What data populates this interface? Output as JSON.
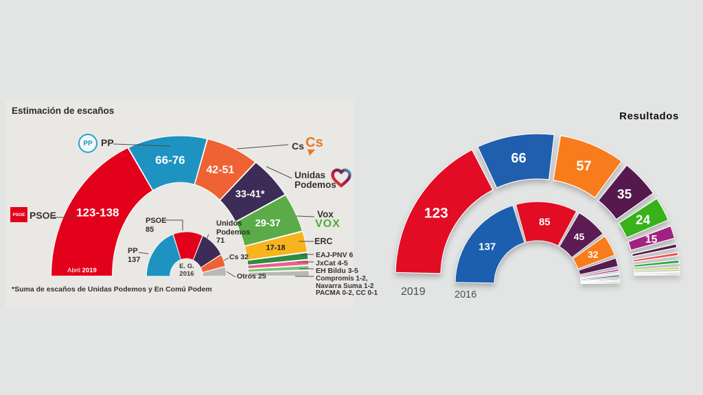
{
  "page": {
    "background": "#e3e4e4"
  },
  "left_chart": {
    "title": "Estimación de escaños",
    "footnote": "*Suma de escaños de Unidas Podemos y En Comú Podem",
    "period_label": {
      "regular": "Abril",
      "bold": "2019"
    },
    "center_label": {
      "line1": "E. G.",
      "line2": "2016"
    },
    "logos": {
      "psoe_logo_text": "PSOE",
      "pp_logo_text": "PP",
      "cs_logo_text": "Cs",
      "vox_logo_text": "VOX"
    },
    "callouts": {
      "pp": "PP",
      "psoe": "PSOE",
      "cs": "Cs",
      "unidas_podemos_line1": "Unidas",
      "unidas_podemos_line2": "Podemos",
      "vox": "Vox",
      "erc": "ERC"
    },
    "small_parties": [
      {
        "name": "EAJ-PNV",
        "value": "6"
      },
      {
        "name": "JxCat",
        "value": "4-5"
      },
      {
        "name": "EH Bildu",
        "value": "3-5"
      }
    ],
    "others_lines": [
      "Compromís 1-2,",
      "Navarra Suma 1-2",
      "PACMA 0-2, CC 0-1"
    ],
    "inner_callouts": {
      "psoe_name": "PSOE",
      "psoe_value": "85",
      "pp_name": "PP",
      "pp_value": "137",
      "up_line1": "Unidos",
      "up_line2": "Podemos",
      "up_value": "71",
      "cs_name": "Cs",
      "cs_value": "32",
      "otros_name": "Otros",
      "otros_value": "25"
    }
  },
  "right_chart": {
    "title": "Resultados",
    "year_outer": "2019",
    "year_inner": "2016"
  },
  "chart_data": [
    {
      "type": "hemicycle",
      "title": "Estimación de escaños",
      "rings": [
        {
          "name": "Abril 2019 estimación",
          "segments": [
            {
              "party": "PSOE",
              "label": "123-138",
              "value": 130.5,
              "color": "#e2001a",
              "text": "#ffffff",
              "fs": 17
            },
            {
              "party": "PP",
              "label": "66-76",
              "value": 71,
              "color": "#1e93c1",
              "text": "#ffffff",
              "fs": 17
            },
            {
              "party": "Cs",
              "label": "42-51",
              "value": 46.5,
              "color": "#ee6233",
              "text": "#ffffff",
              "fs": 16
            },
            {
              "party": "Unidas Podemos",
              "label": "33-41*",
              "value": 37,
              "color": "#3d2c57",
              "text": "#ffffff",
              "fs": 14.5
            },
            {
              "party": "Vox",
              "label": "29-37",
              "value": 33,
              "color": "#5bab48",
              "text": "#ffffff",
              "fs": 14.5
            },
            {
              "party": "ERC",
              "label": "17-18",
              "value": 17.5,
              "color": "#f7b41f",
              "text": "#1d1d1b",
              "fs": 11
            },
            {
              "party": "EAJ-PNV",
              "label": "",
              "value": 6,
              "color": "#2d8b44"
            },
            {
              "party": "JxCat",
              "label": "",
              "value": 4.5,
              "color": "#ec5f8e"
            },
            {
              "party": "EH Bildu",
              "label": "",
              "value": 4,
              "color": "#7cc476"
            },
            {
              "party": "Otros",
              "label": "",
              "value": 5,
              "color": "#b9b9b9"
            }
          ]
        },
        {
          "name": "E.G. 2016",
          "segments": [
            {
              "party": "PP",
              "label": "",
              "value": 137,
              "color": "#1e93c1"
            },
            {
              "party": "PSOE",
              "label": "",
              "value": 85,
              "color": "#e2001a"
            },
            {
              "party": "Unidos Podemos",
              "label": "",
              "value": 71,
              "color": "#3d2c57"
            },
            {
              "party": "Cs",
              "label": "",
              "value": 32,
              "color": "#ee6233"
            },
            {
              "party": "Otros",
              "label": "",
              "value": 25,
              "color": "#b9b9b9"
            }
          ]
        }
      ]
    },
    {
      "type": "hemicycle",
      "title": "Resultados",
      "rings": [
        {
          "name": "2019",
          "segments": [
            {
              "party": "PSOE",
              "label": "123",
              "value": 123,
              "color": "#e20d25",
              "text": "#ffffff",
              "fs": 21
            },
            {
              "party": "PP",
              "label": "66",
              "value": 66,
              "color": "#1f5fae",
              "text": "#ffffff",
              "fs": 20
            },
            {
              "party": "Cs",
              "label": "57",
              "value": 57,
              "color": "#f87c1b",
              "text": "#ffffff",
              "fs": 20
            },
            {
              "party": "Unidas Podemos",
              "label": "35",
              "value": 35,
              "color": "#55194e",
              "text": "#ffffff",
              "fs": 19
            },
            {
              "party": "Vox",
              "label": "24",
              "value": 24,
              "color": "#37b219",
              "text": "#ffffff",
              "fs": 19
            },
            {
              "party": "ERC",
              "label": "15",
              "value": 15,
              "color": "#a32180",
              "text": "#ffffff",
              "fs": 16
            },
            {
              "party": "minor",
              "label": "",
              "value": 7,
              "color": "#521b4e"
            },
            {
              "party": "minor",
              "label": "",
              "value": 6,
              "color": "#f15151"
            },
            {
              "party": "minor",
              "label": "",
              "value": 6,
              "color": "#2ba747"
            },
            {
              "party": "minor",
              "label": "",
              "value": 4,
              "color": "#a2d622"
            },
            {
              "party": "minor",
              "label": "",
              "value": 2,
              "color": "#efec9b"
            },
            {
              "party": "minor",
              "label": "",
              "value": 2,
              "color": "#d40b0b"
            }
          ]
        },
        {
          "name": "2016",
          "segments": [
            {
              "party": "PP",
              "label": "137",
              "value": 137,
              "color": "#1c5fae",
              "text": "#ffffff",
              "fs": 15
            },
            {
              "party": "PSOE",
              "label": "85",
              "value": 85,
              "color": "#e20d25",
              "text": "#ffffff",
              "fs": 15
            },
            {
              "party": "Podemos",
              "label": "45",
              "value": 45,
              "color": "#5b1b53",
              "text": "#ffffff",
              "fs": 14
            },
            {
              "party": "Cs",
              "label": "32",
              "value": 32,
              "color": "#f87c1b",
              "text": "#ffffff",
              "fs": 14
            },
            {
              "party": "minor",
              "label": "",
              "value": 15,
              "color": "#581a50"
            },
            {
              "party": "minor",
              "label": "",
              "value": 6,
              "color": "#b8217b"
            },
            {
              "party": "minor",
              "label": "",
              "value": 2,
              "color": "#4a1747"
            },
            {
              "party": "minor",
              "label": "",
              "value": 5,
              "color": "#23356b"
            },
            {
              "party": "minor",
              "label": "",
              "value": 3,
              "color": "#4a1747"
            },
            {
              "party": "minor",
              "label": "",
              "value": 2,
              "color": "#b8217b"
            },
            {
              "party": "minor",
              "label": "",
              "value": 3,
              "color": "#2fbb1f"
            }
          ]
        }
      ]
    }
  ]
}
